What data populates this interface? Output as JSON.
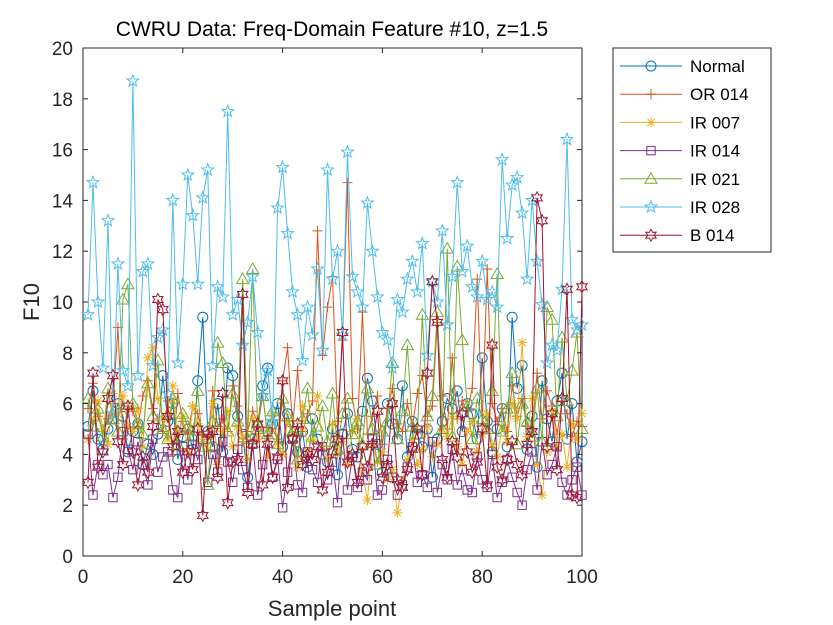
{
  "chart_data": {
    "type": "line",
    "title": "CWRU Data: Freq-Domain Feature #10, z=1.5",
    "xlabel": "Sample point",
    "ylabel": "F10",
    "xlim": [
      0,
      100
    ],
    "ylim": [
      0,
      20
    ],
    "xticks": [
      "0",
      "20",
      "40",
      "60",
      "80",
      "100"
    ],
    "yticks": [
      "0",
      "2",
      "4",
      "6",
      "8",
      "10",
      "12",
      "14",
      "16",
      "18",
      "20"
    ],
    "grid": false,
    "legend_position": "outside-top-right",
    "x": [
      1,
      2,
      3,
      4,
      5,
      6,
      7,
      8,
      9,
      10,
      11,
      12,
      13,
      14,
      15,
      16,
      17,
      18,
      19,
      20,
      21,
      22,
      23,
      24,
      25,
      26,
      27,
      28,
      29,
      30,
      31,
      32,
      33,
      34,
      35,
      36,
      37,
      38,
      39,
      40,
      41,
      42,
      43,
      44,
      45,
      46,
      47,
      48,
      49,
      50,
      51,
      52,
      53,
      54,
      55,
      56,
      57,
      58,
      59,
      60,
      61,
      62,
      63,
      64,
      65,
      66,
      67,
      68,
      69,
      70,
      71,
      72,
      73,
      74,
      75,
      76,
      77,
      78,
      79,
      80,
      81,
      82,
      83,
      84,
      85,
      86,
      87,
      88,
      89,
      90,
      91,
      92,
      93,
      94,
      95,
      96,
      97,
      98,
      99,
      100
    ],
    "series": [
      {
        "name": "Normal",
        "color": "#0072BD",
        "marker": "circle",
        "values": [
          5.1,
          6.5,
          4.6,
          4.2,
          5.0,
          5.4,
          6.0,
          5.5,
          4.1,
          4.9,
          5.2,
          3.6,
          4.4,
          4.0,
          4.8,
          7.1,
          5.3,
          6.0,
          3.8,
          4.7,
          5.0,
          4.2,
          6.9,
          9.4,
          4.9,
          4.3,
          6.0,
          4.1,
          7.4,
          7.1,
          5.5,
          4.8,
          3.1,
          4.6,
          5.1,
          6.7,
          7.4,
          5.2,
          6.0,
          4.3,
          5.6,
          4.7,
          4.1,
          4.9,
          3.5,
          5.4,
          4.6,
          4.0,
          3.7,
          5.0,
          3.2,
          4.8,
          5.6,
          4.2,
          3.9,
          5.7,
          7.0,
          6.1,
          4.4,
          3.3,
          6.0,
          5.2,
          4.6,
          6.7,
          3.9,
          5.3,
          4.8,
          4.3,
          5.0,
          3.1,
          4.6,
          5.3,
          6.2,
          5.8,
          6.5,
          4.9,
          6.0,
          5.6,
          4.6,
          7.8,
          5.3,
          4.1,
          5.0,
          5.8,
          4.3,
          9.4,
          6.6,
          7.5,
          4.2,
          5.5,
          3.5,
          6.9,
          5.4,
          4.5,
          6.1,
          7.2,
          4.6,
          6.0,
          3.7,
          4.5
        ]
      },
      {
        "name": "OR 014",
        "color": "#D95319",
        "marker": "plus",
        "values": [
          5.8,
          6.8,
          5.5,
          4.9,
          5.4,
          6.0,
          9.0,
          4.6,
          5.9,
          5.7,
          5.1,
          6.3,
          6.9,
          5.8,
          5.4,
          4.9,
          6.1,
          4.0,
          6.4,
          5.3,
          4.8,
          5.9,
          5.6,
          4.8,
          4.6,
          6.5,
          5.1,
          5.4,
          4.9,
          6.7,
          5.9,
          4.5,
          4.9,
          5.7,
          5.3,
          6.4,
          4.7,
          5.0,
          4.6,
          6.9,
          8.2,
          5.1,
          7.3,
          4.9,
          5.6,
          6.1,
          12.8,
          7.9,
          9.8,
          11.0,
          5.3,
          8.5,
          14.7,
          6.2,
          5.0,
          9.6,
          4.8,
          5.5,
          6.3,
          4.4,
          5.8,
          6.6,
          5.2,
          4.9,
          6.0,
          5.1,
          6.4,
          7.1,
          5.5,
          5.9,
          9.2,
          6.3,
          5.0,
          7.8,
          5.4,
          6.1,
          5.7,
          6.6,
          10.9,
          5.2,
          11.3,
          6.0,
          5.3,
          5.8,
          4.9,
          6.7,
          5.5,
          6.2,
          5.1,
          5.0,
          7.2,
          5.4,
          6.5,
          5.9,
          4.8,
          6.1,
          5.6,
          4.7,
          5.3,
          5.1
        ]
      },
      {
        "name": "IR 007",
        "color": "#EDB120",
        "marker": "asterisk",
        "values": [
          4.6,
          5.3,
          6.1,
          5.0,
          4.4,
          6.4,
          5.6,
          6.3,
          5.1,
          4.9,
          5.8,
          4.3,
          7.8,
          8.2,
          6.2,
          5.4,
          4.6,
          6.7,
          4.8,
          5.5,
          4.1,
          5.9,
          5.2,
          4.5,
          4.2,
          6.0,
          3.6,
          4.9,
          5.7,
          4.3,
          5.1,
          4.7,
          3.8,
          5.4,
          4.6,
          5.0,
          3.9,
          5.6,
          4.4,
          4.0,
          5.3,
          4.8,
          3.5,
          5.9,
          4.1,
          4.6,
          6.3,
          4.3,
          3.8,
          5.2,
          4.0,
          4.5,
          3.6,
          4.9,
          5.4,
          3.3,
          2.2,
          4.4,
          3.7,
          4.1,
          3.0,
          3.4,
          1.7,
          2.9,
          3.8,
          4.6,
          3.6,
          4.2,
          5.1,
          3.9,
          4.4,
          5.0,
          4.7,
          5.5,
          4.3,
          3.6,
          4.9,
          5.3,
          4.1,
          4.8,
          5.6,
          4.4,
          3.9,
          5.1,
          4.5,
          6.0,
          5.4,
          8.4,
          4.7,
          6.2,
          3.6,
          2.4,
          4.1,
          5.7,
          4.3,
          4.8,
          3.5,
          5.2,
          4.6,
          5.6
        ]
      },
      {
        "name": "IR 014",
        "color": "#7E2F8E",
        "marker": "square",
        "values": [
          4.8,
          2.4,
          3.6,
          3.2,
          3.6,
          2.3,
          3.1,
          4.9,
          4.2,
          3.4,
          4.5,
          3.6,
          2.8,
          4.6,
          3.3,
          3.9,
          4.1,
          2.6,
          2.3,
          4.3,
          3.0,
          4.4,
          3.8,
          4.6,
          2.9,
          4.0,
          3.3,
          4.5,
          3.7,
          2.9,
          4.2,
          3.4,
          2.7,
          4.4,
          2.4,
          3.6,
          4.9,
          3.1,
          3.8,
          1.9,
          3.3,
          4.6,
          2.8,
          2.5,
          4.1,
          3.4,
          2.9,
          4.3,
          3.0,
          3.7,
          2.1,
          4.8,
          2.6,
          3.9,
          2.7,
          3.3,
          3.0,
          4.6,
          2.4,
          2.6,
          3.8,
          3.1,
          2.4,
          2.8,
          3.5,
          4.3,
          2.9,
          3.2,
          2.7,
          4.5,
          2.5,
          3.6,
          3.0,
          4.2,
          2.8,
          3.4,
          2.6,
          2.5,
          3.9,
          3.0,
          2.7,
          4.0,
          2.3,
          2.9,
          3.8,
          3.1,
          2.5,
          2.0,
          3.4,
          4.1,
          2.6,
          4.5,
          3.2,
          3.6,
          4.3,
          2.9,
          2.4,
          3.0,
          3.5,
          2.4
        ]
      },
      {
        "name": "IR 021",
        "color": "#77AC30",
        "marker": "triangle",
        "values": [
          6.2,
          5.1,
          5.8,
          4.7,
          6.6,
          5.4,
          4.9,
          10.1,
          10.7,
          6.0,
          5.2,
          4.8,
          6.8,
          5.5,
          7.7,
          5.0,
          4.6,
          6.2,
          4.4,
          5.6,
          5.1,
          4.7,
          6.5,
          4.3,
          2.8,
          5.3,
          8.4,
          7.6,
          4.9,
          6.4,
          5.3,
          10.9,
          4.6,
          11.3,
          5.0,
          6.3,
          4.8,
          5.7,
          4.4,
          6.2,
          5.5,
          4.9,
          3.8,
          5.4,
          6.6,
          4.7,
          5.1,
          5.9,
          4.5,
          6.4,
          4.2,
          5.6,
          6.2,
          4.8,
          5.3,
          4.4,
          6.6,
          5.0,
          3.6,
          4.9,
          5.3,
          7.6,
          4.6,
          5.7,
          8.3,
          5.1,
          4.8,
          9.5,
          5.5,
          6.3,
          9.6,
          5.0,
          12.1,
          4.7,
          11.4,
          8.5,
          5.9,
          4.6,
          6.2,
          5.4,
          5.0,
          6.5,
          11.1,
          4.9,
          5.8,
          7.2,
          4.4,
          6.0,
          5.3,
          4.7,
          6.6,
          4.5,
          9.8,
          9.3,
          5.5,
          8.6,
          6.1,
          7.3,
          8.8,
          5.0
        ]
      },
      {
        "name": "IR 028",
        "color": "#4DBEEE",
        "marker": "pentagram",
        "values": [
          9.5,
          14.7,
          10.0,
          7.4,
          13.2,
          5.6,
          11.5,
          7.3,
          6.7,
          18.7,
          7.1,
          11.2,
          11.5,
          7.5,
          8.6,
          8.9,
          6.4,
          14.0,
          7.6,
          10.7,
          15.0,
          13.4,
          10.7,
          14.1,
          15.2,
          7.5,
          10.6,
          10.2,
          17.5,
          9.5,
          10.1,
          8.3,
          9.2,
          11.0,
          8.8,
          6.3,
          7.3,
          5.3,
          13.7,
          15.3,
          12.7,
          10.4,
          9.5,
          7.7,
          9.8,
          8.7,
          11.3,
          8.1,
          15.2,
          10.9,
          12.0,
          8.7,
          15.9,
          11.0,
          10.4,
          9.8,
          13.9,
          12.0,
          10.2,
          8.8,
          8.5,
          7.4,
          10.1,
          9.6,
          10.9,
          11.6,
          10.4,
          12.3,
          7.9,
          10.8,
          10.0,
          12.8,
          9.1,
          11.0,
          14.7,
          11.2,
          12.2,
          10.6,
          10.2,
          11.6,
          10.1,
          10.4,
          9.8,
          15.6,
          12.5,
          14.6,
          14.9,
          13.5,
          10.9,
          14.0,
          11.6,
          9.9,
          7.6,
          8.3,
          8.1,
          10.5,
          16.4,
          9.3,
          8.9,
          9.1
        ]
      },
      {
        "name": "B 014",
        "color": "#A2142F",
        "marker": "hexagram",
        "values": [
          2.9,
          7.2,
          3.5,
          4.1,
          6.2,
          7.1,
          4.5,
          3.6,
          5.9,
          4.1,
          2.8,
          3.9,
          3.3,
          5.1,
          10.1,
          9.7,
          5.5,
          4.3,
          4.9,
          3.3,
          4.1,
          3.4,
          5.0,
          1.6,
          4.8,
          4.9,
          3.1,
          6.4,
          2.1,
          3.7,
          3.8,
          10.3,
          2.5,
          4.4,
          5.2,
          2.8,
          4.4,
          3.1,
          3.9,
          6.9,
          2.7,
          4.6,
          5.2,
          3.6,
          4.0,
          3.8,
          4.3,
          2.6,
          3.3,
          4.1,
          4.6,
          8.8,
          3.7,
          4.0,
          2.9,
          4.3,
          3.5,
          4.4,
          5.7,
          3.1,
          3.6,
          6.0,
          3.0,
          2.7,
          3.4,
          4.2,
          5.0,
          3.2,
          7.2,
          10.8,
          9.2,
          3.8,
          3.1,
          4.5,
          3.9,
          5.6,
          4.1,
          3.3,
          3.7,
          5.0,
          2.8,
          8.3,
          3.5,
          3.0,
          3.8,
          4.5,
          3.6,
          3.2,
          4.4,
          4.9,
          14.1,
          13.2,
          4.3,
          5.6,
          3.4,
          6.2,
          10.5,
          2.4,
          2.3,
          10.6
        ]
      }
    ]
  }
}
